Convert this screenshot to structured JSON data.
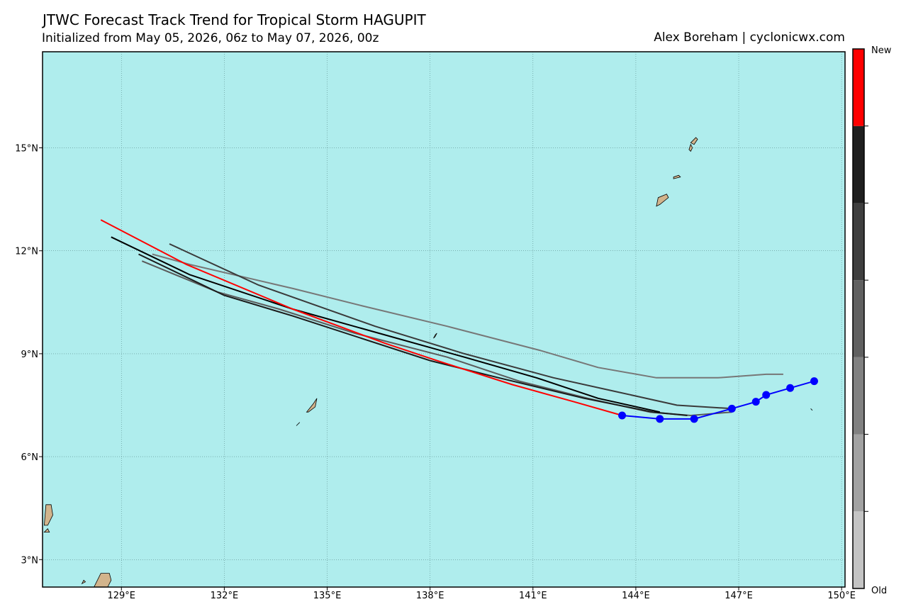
{
  "title": "JTWC Forecast Track Trend for Tropical Storm HAGUPIT",
  "subtitle": "Initialized from May 05, 2026, 06z to May 07, 2026, 00z",
  "credit": "Alex Boreham | cyclonicwx.com",
  "colors": {
    "ocean": "#afeded",
    "land": "#d2b48c",
    "grid": "#5a8a8a",
    "current_track": "#0000ff",
    "newest": "#ff0000"
  },
  "colorbar": {
    "top_label": "New",
    "bottom_label": "Old",
    "colors": [
      "#c4c4c4",
      "#a2a2a2",
      "#818181",
      "#606060",
      "#3f3f3f",
      "#1f1f1f",
      "#ff0000"
    ]
  },
  "chart_data": {
    "type": "map-tracks",
    "lon_range": [
      126.7,
      150.1
    ],
    "lat_range": [
      2.2,
      17.8
    ],
    "x_ticks": [
      {
        "value": 129,
        "label": "129°E"
      },
      {
        "value": 132,
        "label": "132°E"
      },
      {
        "value": 135,
        "label": "135°E"
      },
      {
        "value": 138,
        "label": "138°E"
      },
      {
        "value": 141,
        "label": "141°E"
      },
      {
        "value": 144,
        "label": "144°E"
      },
      {
        "value": 147,
        "label": "147°E"
      },
      {
        "value": 150,
        "label": "150°E"
      }
    ],
    "y_ticks": [
      {
        "value": 3,
        "label": "3°N"
      },
      {
        "value": 6,
        "label": "6°N"
      },
      {
        "value": 9,
        "label": "9°N"
      },
      {
        "value": 12,
        "label": "12°N"
      },
      {
        "value": 15,
        "label": "15°N"
      }
    ],
    "forecast_tracks": [
      {
        "age": 0,
        "color": "#777777",
        "points": [
          [
            148.3,
            8.4
          ],
          [
            147.8,
            8.4
          ],
          [
            146.4,
            8.3
          ],
          [
            144.6,
            8.3
          ],
          [
            142.9,
            8.6
          ],
          [
            141.2,
            9.1
          ],
          [
            138.5,
            9.8
          ],
          [
            136.0,
            10.4
          ],
          [
            134.0,
            10.9
          ],
          [
            131.0,
            11.6
          ],
          [
            129.9,
            11.9
          ]
        ]
      },
      {
        "age": 1,
        "color": "#5a5a5a",
        "points": [
          [
            146.8,
            7.3
          ],
          [
            145.6,
            7.2
          ],
          [
            144.4,
            7.3
          ],
          [
            142.6,
            7.7
          ],
          [
            140.6,
            8.2
          ],
          [
            138.5,
            8.9
          ],
          [
            135.8,
            9.6
          ],
          [
            133.6,
            10.3
          ],
          [
            131.8,
            10.8
          ],
          [
            129.6,
            11.7
          ]
        ]
      },
      {
        "age": 2,
        "color": "#3a3a3a",
        "points": [
          [
            146.8,
            7.4
          ],
          [
            145.2,
            7.5
          ],
          [
            143.4,
            7.9
          ],
          [
            141.6,
            8.3
          ],
          [
            139.0,
            9.0
          ],
          [
            136.4,
            9.8
          ],
          [
            133.0,
            11.0
          ],
          [
            130.4,
            12.2
          ]
        ]
      },
      {
        "age": 3,
        "color": "#1a1a1a",
        "points": [
          [
            145.5,
            7.2
          ],
          [
            144.5,
            7.3
          ],
          [
            142.5,
            7.7
          ],
          [
            140.0,
            8.3
          ],
          [
            138.0,
            8.8
          ],
          [
            134.0,
            10.1
          ],
          [
            132.0,
            10.7
          ],
          [
            129.5,
            11.9
          ]
        ]
      },
      {
        "age": 4,
        "color": "#000000",
        "points": [
          [
            144.7,
            7.3
          ],
          [
            142.9,
            7.7
          ],
          [
            141.1,
            8.3
          ],
          [
            139.0,
            8.9
          ],
          [
            136.5,
            9.6
          ],
          [
            134.0,
            10.3
          ],
          [
            131.0,
            11.3
          ],
          [
            128.7,
            12.4
          ]
        ]
      },
      {
        "age": 5,
        "color": "#ff0000",
        "points": [
          [
            143.6,
            7.2
          ],
          [
            142.2,
            7.6
          ],
          [
            140.4,
            8.1
          ],
          [
            138.2,
            8.8
          ],
          [
            136.7,
            9.3
          ],
          [
            134.0,
            10.3
          ],
          [
            130.9,
            11.6
          ],
          [
            128.4,
            12.9
          ]
        ]
      }
    ],
    "current_track": {
      "color": "#0000ff",
      "points": [
        [
          149.2,
          8.2
        ],
        [
          148.5,
          8.0
        ],
        [
          147.8,
          7.8
        ],
        [
          147.5,
          7.6
        ],
        [
          146.8,
          7.4
        ],
        [
          145.7,
          7.1
        ],
        [
          144.7,
          7.1
        ],
        [
          143.6,
          7.2
        ]
      ]
    },
    "islands": [
      {
        "name_hint": "guam",
        "points": [
          [
            144.6,
            13.3
          ],
          [
            144.65,
            13.55
          ],
          [
            144.9,
            13.65
          ],
          [
            144.95,
            13.55
          ],
          [
            144.7,
            13.35
          ]
        ]
      },
      {
        "name_hint": "rota",
        "points": [
          [
            145.1,
            14.1
          ],
          [
            145.3,
            14.15
          ],
          [
            145.25,
            14.2
          ],
          [
            145.1,
            14.15
          ]
        ]
      },
      {
        "name_hint": "saipan",
        "points": [
          [
            145.6,
            15.15
          ],
          [
            145.75,
            15.3
          ],
          [
            145.8,
            15.25
          ],
          [
            145.7,
            15.1
          ]
        ]
      },
      {
        "name_hint": "tinian",
        "points": [
          [
            145.55,
            14.95
          ],
          [
            145.6,
            15.1
          ],
          [
            145.65,
            15.0
          ],
          [
            145.6,
            14.9
          ]
        ]
      },
      {
        "name_hint": "yap",
        "points": [
          [
            138.1,
            9.45
          ],
          [
            138.15,
            9.55
          ],
          [
            138.2,
            9.6
          ],
          [
            138.15,
            9.5
          ]
        ]
      },
      {
        "name_hint": "palau",
        "points": [
          [
            134.4,
            7.3
          ],
          [
            134.6,
            7.55
          ],
          [
            134.7,
            7.7
          ],
          [
            134.65,
            7.45
          ],
          [
            134.45,
            7.3
          ]
        ]
      },
      {
        "name_hint": "palau-south",
        "points": [
          [
            134.1,
            6.9
          ],
          [
            134.2,
            7.0
          ],
          [
            134.15,
            6.95
          ]
        ]
      },
      {
        "name_hint": "mindanao-north",
        "points": [
          [
            126.75,
            4.0
          ],
          [
            126.8,
            4.6
          ],
          [
            126.95,
            4.6
          ],
          [
            127.0,
            4.3
          ],
          [
            126.85,
            4.0
          ]
        ]
      },
      {
        "name_hint": "mindanao-south",
        "points": [
          [
            126.75,
            3.8
          ],
          [
            126.9,
            3.8
          ],
          [
            126.85,
            3.9
          ]
        ]
      },
      {
        "name_hint": "halmahera",
        "points": [
          [
            128.2,
            2.2
          ],
          [
            128.4,
            2.6
          ],
          [
            128.65,
            2.6
          ],
          [
            128.7,
            2.4
          ],
          [
            128.6,
            2.2
          ]
        ]
      },
      {
        "name_hint": "morotai-islet",
        "points": [
          [
            127.85,
            2.3
          ],
          [
            127.95,
            2.35
          ],
          [
            127.9,
            2.4
          ]
        ]
      },
      {
        "name_hint": "east-islet",
        "points": [
          [
            149.1,
            7.4
          ],
          [
            149.15,
            7.35
          ]
        ]
      }
    ]
  }
}
